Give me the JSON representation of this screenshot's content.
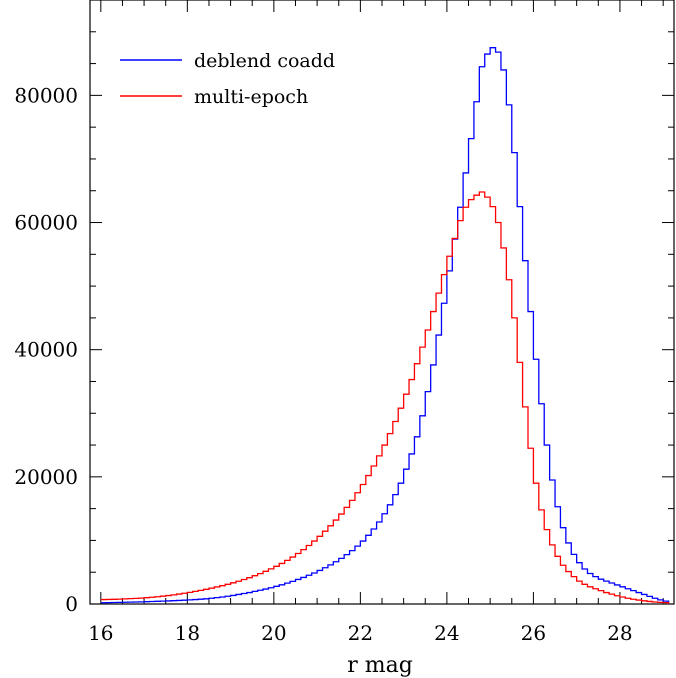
{
  "chart_data": {
    "type": "histogram",
    "xlabel": "r mag",
    "ylabel": "",
    "xlim": [
      15.75,
      29.25
    ],
    "ylim": [
      0,
      95000
    ],
    "xticks": [
      16,
      18,
      20,
      22,
      24,
      26,
      28
    ],
    "yticks": [
      0,
      20000,
      40000,
      60000,
      80000
    ],
    "xtick_labels": [
      "16",
      "18",
      "20",
      "22",
      "24",
      "26",
      "28"
    ],
    "ytick_labels": [
      "0",
      "20000",
      "40000",
      "60000",
      "80000"
    ],
    "bin_width": 0.125,
    "x_start": 16.0,
    "legend": {
      "position": "top-left"
    },
    "series": [
      {
        "name": "deblend coadd",
        "color": "#0000ff",
        "values": [
          200,
          220,
          240,
          260,
          280,
          300,
          320,
          340,
          360,
          390,
          420,
          450,
          480,
          520,
          560,
          600,
          650,
          700,
          760,
          820,
          900,
          1000,
          1100,
          1220,
          1350,
          1500,
          1650,
          1800,
          1980,
          2160,
          2350,
          2560,
          2780,
          3020,
          3280,
          3560,
          3860,
          4180,
          4520,
          4880,
          5280,
          5700,
          6150,
          6650,
          7180,
          7760,
          8400,
          9100,
          9900,
          10800,
          11800,
          12900,
          14200,
          15600,
          17200,
          19000,
          21200,
          23600,
          26300,
          29600,
          33400,
          37600,
          42300,
          47300,
          52400,
          57400,
          62400,
          67800,
          73200,
          79000,
          84500,
          86500,
          87500,
          86800,
          84000,
          78500,
          71000,
          62500,
          54000,
          46000,
          38500,
          31500,
          25000,
          19500,
          15300,
          12000,
          9600,
          7800,
          6500,
          5500,
          4800,
          4300,
          3900,
          3600,
          3300,
          3000,
          2700,
          2400,
          2100,
          1800,
          1500,
          1200,
          900,
          650,
          450
        ]
      },
      {
        "name": "multi-epoch",
        "color": "#ff0000",
        "values": [
          700,
          720,
          740,
          770,
          800,
          840,
          880,
          930,
          990,
          1060,
          1140,
          1230,
          1330,
          1440,
          1560,
          1690,
          1830,
          1980,
          2140,
          2310,
          2490,
          2680,
          2880,
          3100,
          3330,
          3580,
          3850,
          4140,
          4450,
          4780,
          5140,
          5520,
          5930,
          6380,
          6860,
          7380,
          7940,
          8550,
          9200,
          9900,
          10650,
          11450,
          12300,
          13200,
          14150,
          15200,
          16300,
          17500,
          18800,
          20200,
          21700,
          23300,
          25000,
          26800,
          28700,
          30800,
          33000,
          35300,
          37800,
          40400,
          43100,
          46000,
          48900,
          51800,
          54700,
          57500,
          60300,
          62400,
          63600,
          64300,
          64800,
          64000,
          62500,
          60000,
          56000,
          51000,
          45000,
          38000,
          31000,
          24500,
          19000,
          14800,
          11700,
          9300,
          7500,
          6100,
          5100,
          4300,
          3600,
          3100,
          2700,
          2400,
          2100,
          1800,
          1550,
          1300,
          1100,
          900,
          750,
          620,
          500,
          400,
          320,
          260,
          220
        ]
      }
    ]
  }
}
